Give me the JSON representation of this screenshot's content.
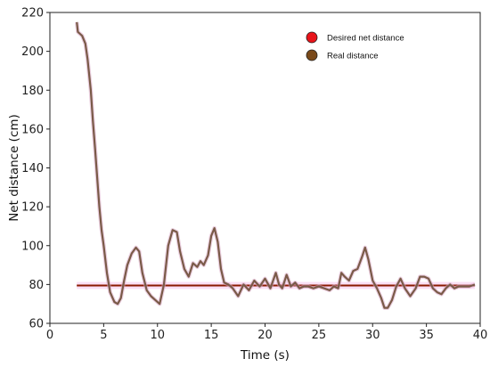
{
  "chart_data": {
    "type": "line",
    "xlabel": "Time (s)",
    "ylabel": "Net distance (cm)",
    "xlim": [
      0,
      40
    ],
    "ylim": [
      60,
      220
    ],
    "xticks": [
      0,
      5,
      10,
      15,
      20,
      25,
      30,
      35,
      40
    ],
    "yticks": [
      60,
      80,
      100,
      120,
      140,
      160,
      180,
      200,
      220
    ],
    "grid": false,
    "legend_position": "top-right",
    "series": [
      {
        "name": "Desired  net distance",
        "color": "#8b1a00",
        "marker_color": "#e8141a",
        "x": [
          2.5,
          39.5
        ],
        "y": [
          79.5,
          79.5
        ]
      },
      {
        "name": "Real distance",
        "color": "#7a5a48",
        "marker_color": "#7a4a1a",
        "x": [
          2.5,
          2.6,
          2.8,
          3.0,
          3.3,
          3.5,
          3.8,
          4.0,
          4.2,
          4.4,
          4.6,
          4.8,
          5.0,
          5.3,
          5.6,
          6.0,
          6.3,
          6.6,
          6.9,
          7.2,
          7.6,
          8.0,
          8.3,
          8.6,
          9.0,
          9.4,
          9.8,
          10.2,
          10.6,
          11.0,
          11.4,
          11.8,
          12.1,
          12.5,
          12.9,
          13.3,
          13.7,
          14.0,
          14.3,
          14.7,
          15.0,
          15.3,
          15.6,
          15.9,
          16.2,
          16.6,
          17.0,
          17.5,
          18.0,
          18.5,
          19.0,
          19.5,
          20.0,
          20.5,
          21.0,
          21.3,
          21.6,
          22.0,
          22.4,
          22.8,
          23.2,
          23.6,
          24.0,
          24.5,
          25.0,
          25.5,
          26.0,
          26.4,
          26.8,
          27.1,
          27.4,
          27.8,
          28.2,
          28.6,
          29.0,
          29.3,
          29.6,
          30.0,
          30.4,
          30.8,
          31.1,
          31.4,
          31.8,
          32.2,
          32.6,
          33.0,
          33.5,
          34.0,
          34.4,
          34.8,
          35.2,
          35.6,
          36.0,
          36.4,
          36.8,
          37.2,
          37.6,
          38.0,
          38.5,
          39.0,
          39.5
        ],
        "y": [
          215,
          210,
          209,
          208,
          204,
          196,
          180,
          164,
          150,
          135,
          120,
          108,
          100,
          86,
          76,
          71,
          70,
          73,
          82,
          90,
          96,
          99,
          97,
          86,
          77,
          74,
          72,
          70,
          80,
          100,
          108,
          107,
          97,
          88,
          84,
          91,
          89,
          92,
          90,
          95,
          105,
          109,
          102,
          88,
          81,
          80,
          78,
          74,
          80,
          77,
          82,
          79,
          83,
          78,
          86,
          80,
          78,
          85,
          79,
          81,
          78,
          79,
          79,
          78,
          79,
          78,
          77,
          79,
          78,
          86,
          84,
          82,
          87,
          88,
          94,
          99,
          93,
          82,
          78,
          73,
          68,
          68,
          72,
          79,
          83,
          78,
          74,
          78,
          84,
          84,
          83,
          78,
          76,
          75,
          78,
          80,
          78,
          79,
          79,
          79,
          80
        ]
      }
    ]
  }
}
